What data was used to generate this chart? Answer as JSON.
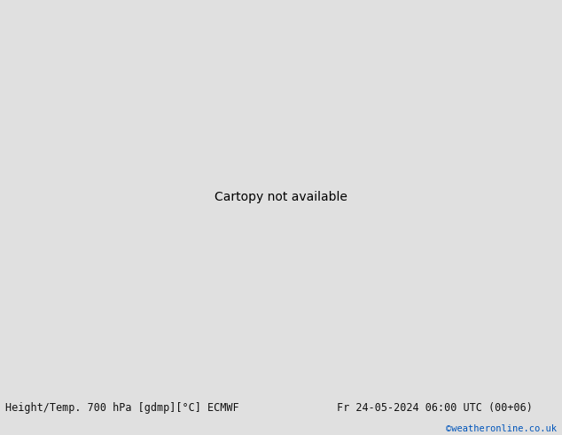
{
  "title_left": "Height/Temp. 700 hPa [gdmp][°C] ECMWF",
  "title_right": "Fr 24-05-2024 06:00 UTC (00+06)",
  "watermark": "©weatheronline.co.uk",
  "watermark_color": "#0055bb",
  "bg_ocean": "#d2d2d2",
  "land_color_green": "#c8f0a0",
  "land_color_gray": "#d2d2d2",
  "border_color": "#999999",
  "figwidth": 6.34,
  "figheight": 4.9,
  "footer_bg": "#e0e0e0",
  "footer_text_color": "#111111",
  "footer_fontsize": 8.5,
  "map_extent": [
    85,
    165,
    -15,
    55
  ],
  "contour_color_black": "#000000",
  "contour_color_magenta": "#ff00bb",
  "contour_color_red": "#dd2222",
  "contour_color_orange": "#ee6600",
  "contour_color_gray": "#888888"
}
